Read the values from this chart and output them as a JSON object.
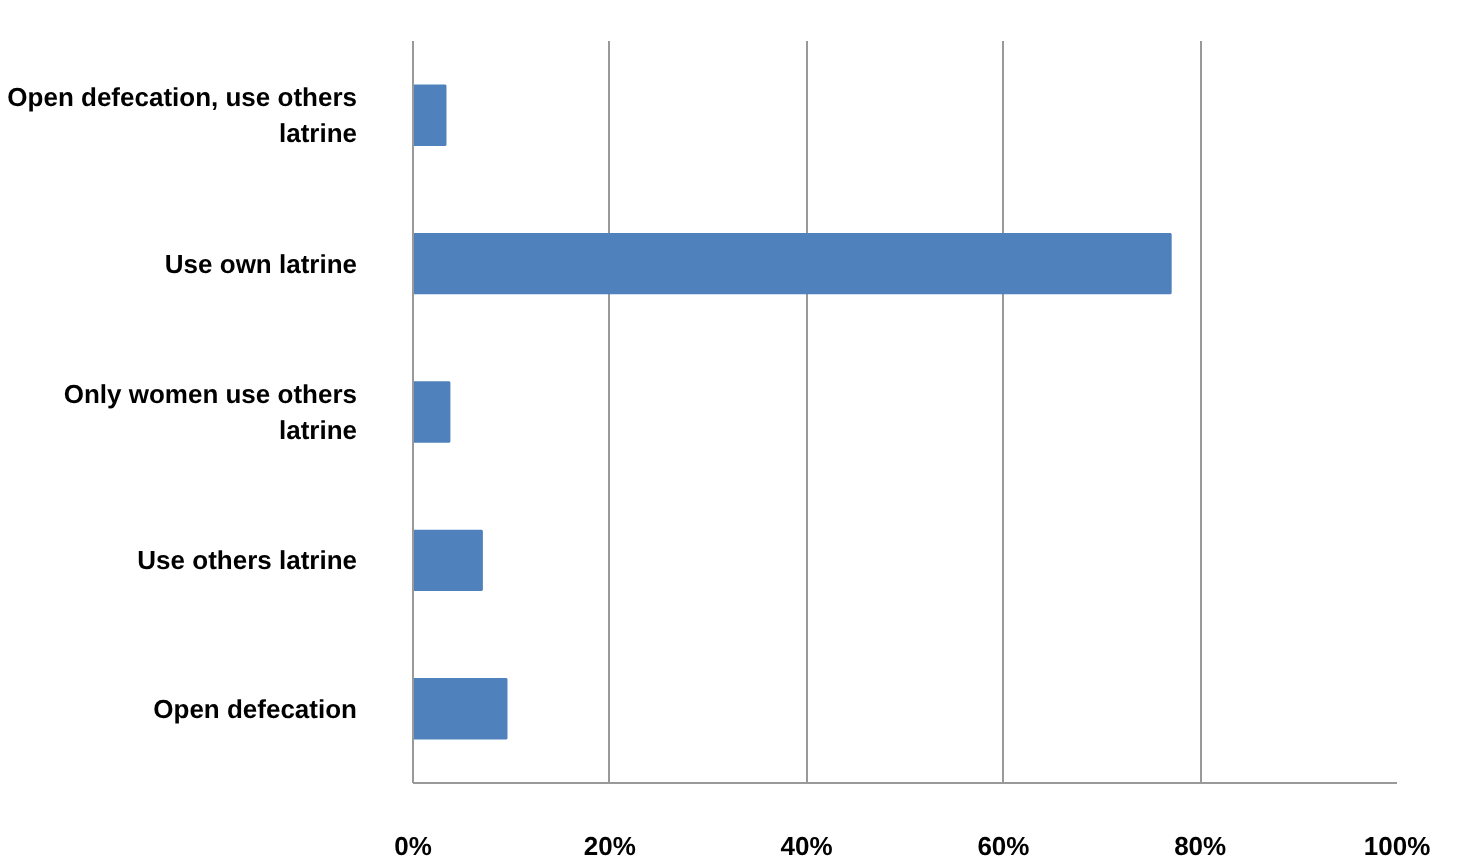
{
  "chart_data": {
    "type": "bar",
    "orientation": "horizontal",
    "categories": [
      "Open defecation, use others latrine",
      "Use own latrine",
      "Only women use others latrine",
      "Use others latrine",
      "Open defecation"
    ],
    "values": [
      3.3,
      77,
      3.7,
      7,
      9.5
    ],
    "color": "#4f81bd",
    "xlim": [
      0,
      100
    ],
    "xticks": [
      {
        "value": 0,
        "label": "0%"
      },
      {
        "value": 20,
        "label": "20%"
      },
      {
        "value": 40,
        "label": "40%"
      },
      {
        "value": 60,
        "label": "60%"
      },
      {
        "value": 80,
        "label": "80%"
      },
      {
        "value": 100,
        "label": "100%"
      }
    ],
    "grid": "x"
  }
}
